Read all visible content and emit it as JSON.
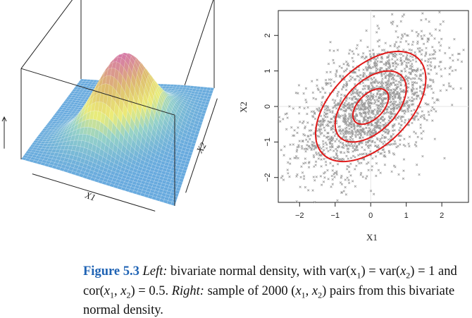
{
  "chart_data": [
    {
      "type": "surface",
      "title": "Left: bivariate normal density surface",
      "xlabel": "X1",
      "ylabel": "X2",
      "var_x1": 1,
      "var_x2": 1,
      "cor": 0.5
    },
    {
      "type": "scatter",
      "n_points": 2000,
      "xlabel": "X1",
      "ylabel": "X2",
      "xlim": [
        -2.6,
        2.75
      ],
      "ylim": [
        -2.7,
        2.7
      ],
      "x_ticks": [
        -2,
        -1,
        0,
        1,
        2
      ],
      "y_ticks": [
        -2,
        -1,
        0,
        1,
        2
      ],
      "x_tick_labels": [
        "−2",
        "−1",
        "0",
        "1",
        "2"
      ],
      "y_tick_labels": [
        "−2",
        "−1",
        "0",
        "1",
        "2"
      ],
      "cor": 0.5,
      "contour_levels": [
        0.5,
        1.0,
        1.55
      ],
      "point_color": "#9a9a9a",
      "contour_color": "#e01818"
    }
  ],
  "caption": {
    "figure_label": "Figure 5.3",
    "left_label": "Left:",
    "left_text": " bivariate normal density, with var(x",
    "right_label": "Right:",
    "right_text": " sample of 2000"
  }
}
